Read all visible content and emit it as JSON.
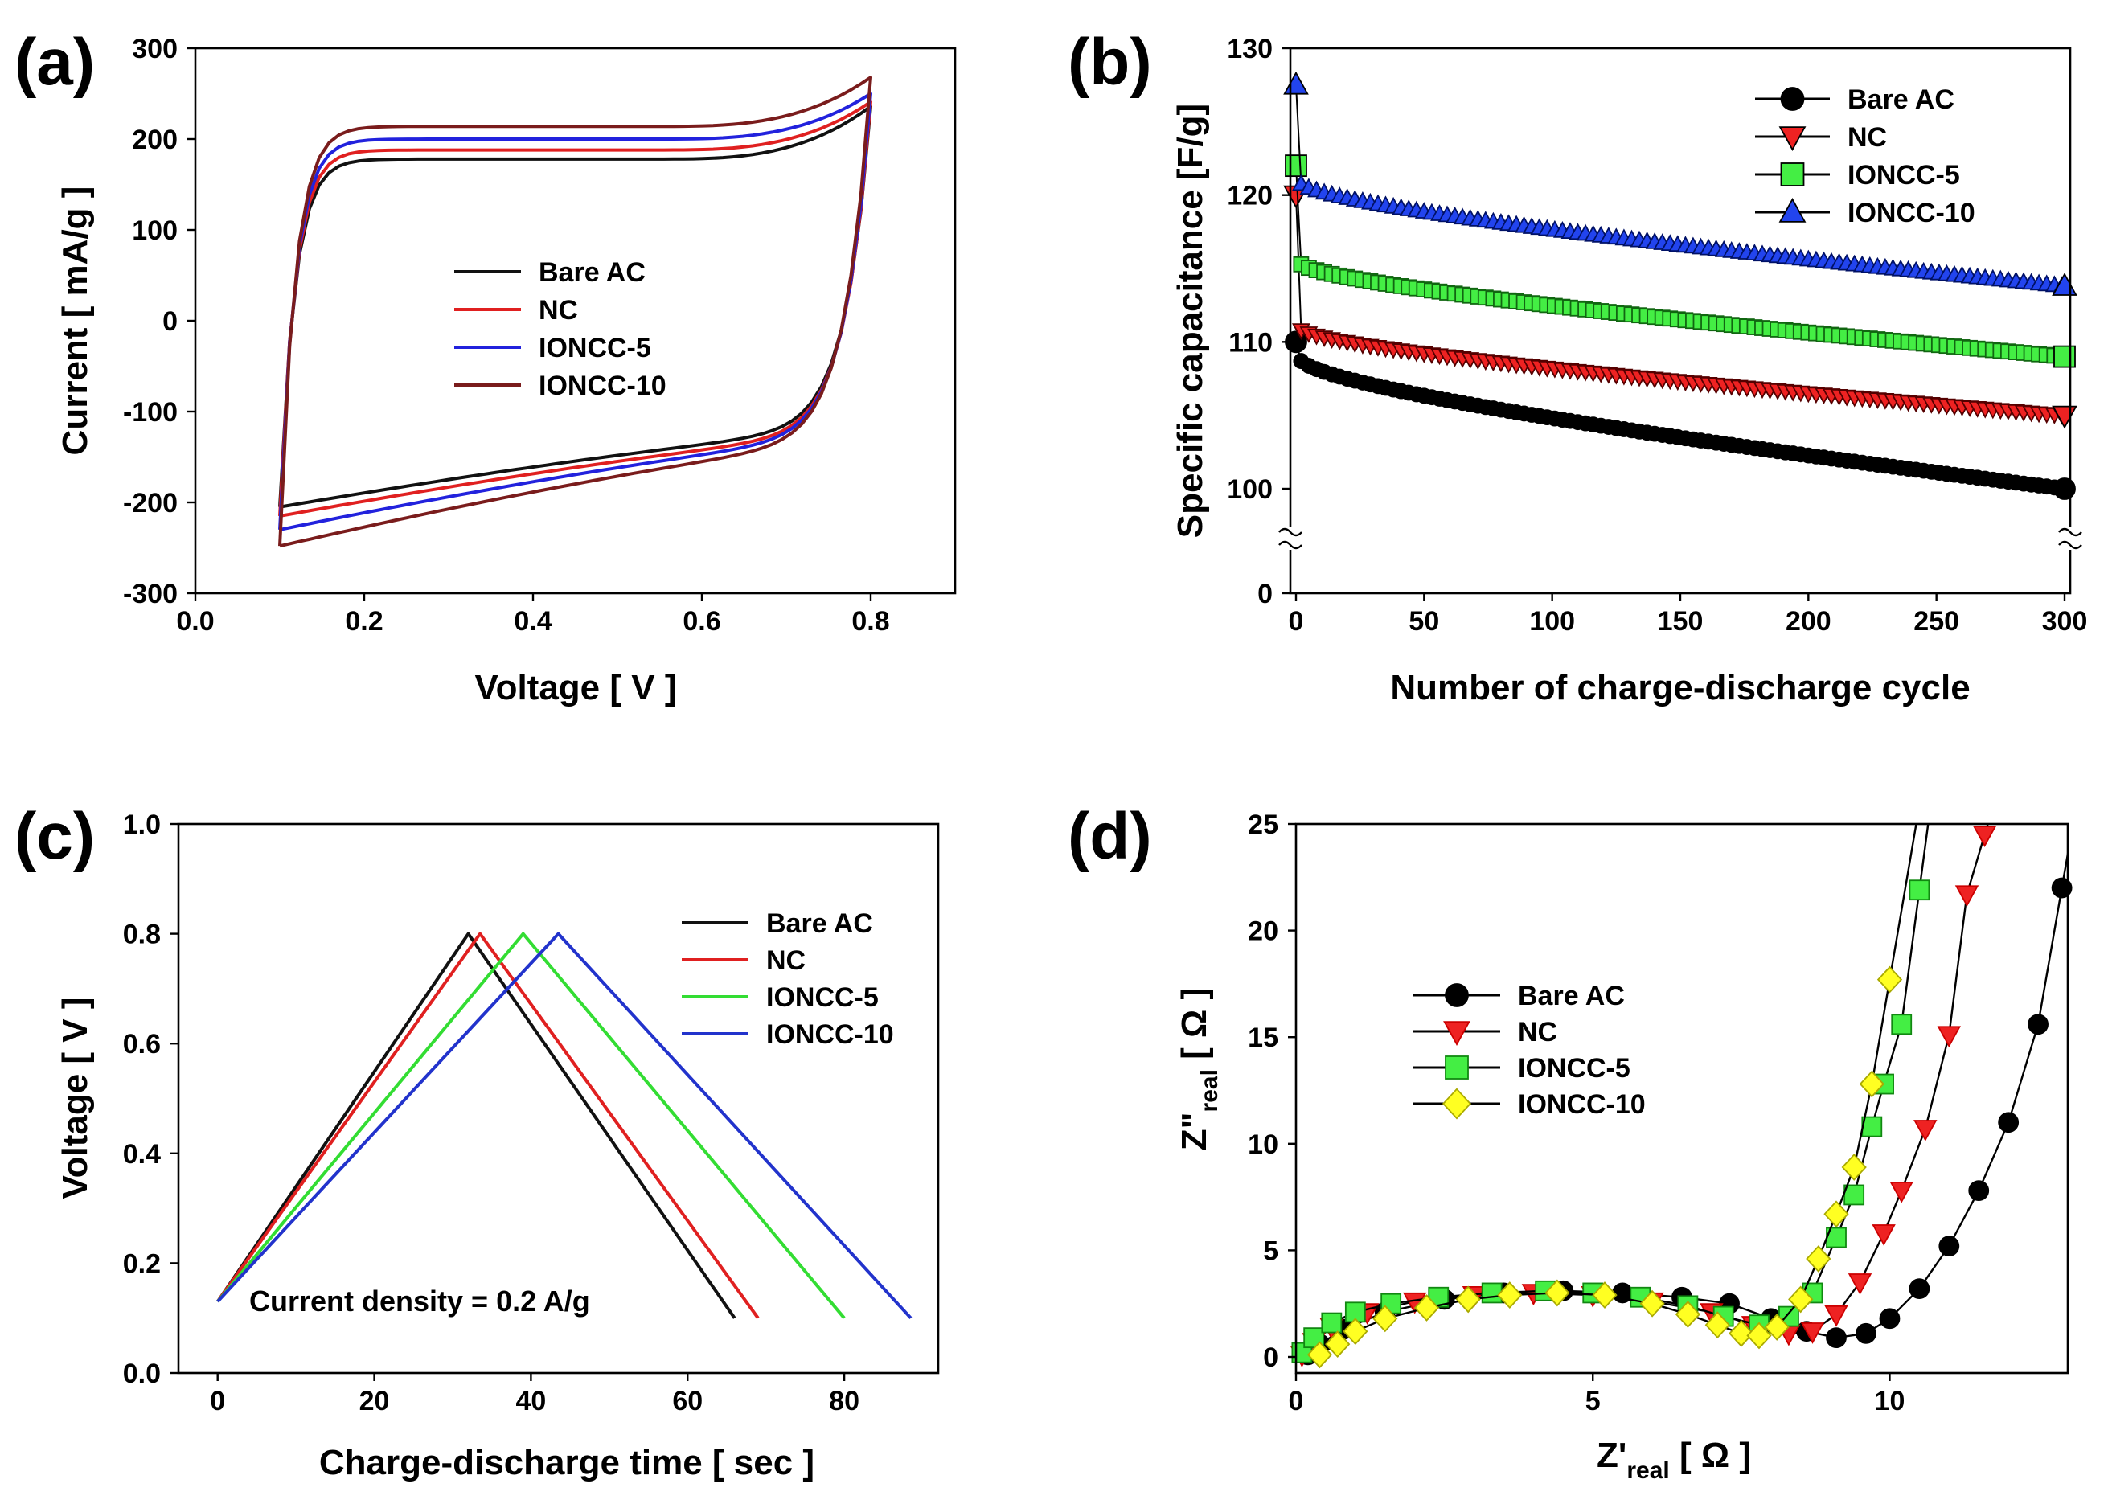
{
  "figure": {
    "panels": [
      "(a)",
      "(b)",
      "(c)",
      "(d)"
    ]
  },
  "chart_data": [
    {
      "id": "a",
      "type": "line",
      "panel_label": "(a)",
      "title": "",
      "xlabel": "Voltage [ V ]",
      "ylabel": "Current [ mA/g ]",
      "xlim": [
        0.0,
        0.9
      ],
      "ylim": [
        -300,
        300
      ],
      "xticks": [
        0.0,
        0.2,
        0.4,
        0.6,
        0.8
      ],
      "xtick_labels": [
        "0.0",
        "0.2",
        "0.4",
        "0.6",
        "0.8"
      ],
      "yticks": [
        -300,
        -200,
        -100,
        0,
        100,
        200,
        300
      ],
      "ytick_labels": [
        "-300",
        "-200",
        "-100",
        "0",
        "100",
        "200",
        "300"
      ],
      "legend_position": "center",
      "series": [
        {
          "name": "Bare AC",
          "color": "#111111",
          "plateau_top": 178,
          "top_end": 236,
          "bottom_start": -205,
          "plateau_bottom": -158,
          "bottom_end": -120
        },
        {
          "name": "NC",
          "color": "#e02020",
          "plateau_top": 188,
          "top_end": 241,
          "bottom_start": -215,
          "plateau_bottom": -165,
          "bottom_end": -125
        },
        {
          "name": "IONCC-5",
          "color": "#2222dd",
          "plateau_top": 200,
          "top_end": 250,
          "bottom_start": -230,
          "plateau_bottom": -172,
          "bottom_end": -128
        },
        {
          "name": "IONCC-10",
          "color": "#7a1c1c",
          "plateau_top": 214,
          "top_end": 268,
          "bottom_start": -248,
          "plateau_bottom": -180,
          "bottom_end": -133
        }
      ]
    },
    {
      "id": "b",
      "type": "scatter",
      "panel_label": "(b)",
      "title": "",
      "xlabel": "Number of charge-discharge cycle",
      "ylabel": "Specific capacitance [F/g]",
      "xlim": [
        0,
        300
      ],
      "ylim": [
        95,
        130
      ],
      "axis_break": "between 0 and 100",
      "xticks": [
        0,
        50,
        100,
        150,
        200,
        250,
        300
      ],
      "xtick_labels": [
        "0",
        "50",
        "100",
        "150",
        "200",
        "250",
        "300"
      ],
      "ytick_labels": [
        "0",
        "100",
        "110",
        "120",
        "130"
      ],
      "legend_position": "top-right",
      "series": [
        {
          "name": "Bare AC",
          "marker": "circle",
          "color": "#000000",
          "first": 110,
          "second": 109,
          "end": 100
        },
        {
          "name": "NC",
          "marker": "triangle-down",
          "color": "#e02020",
          "first": 120,
          "second": 111,
          "end": 105
        },
        {
          "name": "IONCC-5",
          "marker": "square",
          "color": "#33dd33",
          "first": 122,
          "second": 115.5,
          "end": 109
        },
        {
          "name": "IONCC-10",
          "marker": "triangle-up",
          "color": "#2233dd",
          "first": 127.5,
          "second": 121,
          "end": 113.8
        }
      ]
    },
    {
      "id": "c",
      "type": "line",
      "panel_label": "(c)",
      "title": "",
      "xlabel": "Charge-discharge time [ sec ]",
      "ylabel": "Voltage [ V ]",
      "xlim": [
        -5,
        92
      ],
      "ylim": [
        0.0,
        1.0
      ],
      "xticks": [
        0,
        20,
        40,
        60,
        80
      ],
      "xtick_labels": [
        "0",
        "20",
        "40",
        "60",
        "80"
      ],
      "yticks": [
        0.0,
        0.2,
        0.4,
        0.6,
        0.8,
        1.0
      ],
      "ytick_labels": [
        "0.0",
        "0.2",
        "0.4",
        "0.6",
        "0.8",
        "1.0"
      ],
      "annotation": "Current density = 0.2 A/g",
      "legend_position": "top-right",
      "series": [
        {
          "name": "Bare AC",
          "color": "#111111",
          "x": [
            0,
            32,
            66
          ],
          "y": [
            0.13,
            0.8,
            0.1
          ]
        },
        {
          "name": "NC",
          "color": "#e02020",
          "x": [
            0,
            33.5,
            69
          ],
          "y": [
            0.13,
            0.8,
            0.1
          ]
        },
        {
          "name": "IONCC-5",
          "color": "#33dd33",
          "x": [
            0,
            39,
            80
          ],
          "y": [
            0.13,
            0.8,
            0.1
          ]
        },
        {
          "name": "IONCC-10",
          "color": "#2233cc",
          "x": [
            0,
            43.5,
            88.5
          ],
          "y": [
            0.13,
            0.8,
            0.1
          ]
        }
      ]
    },
    {
      "id": "d",
      "type": "scatter",
      "panel_label": "(d)",
      "title": "",
      "xlabel": "Z'real [ Ω ]",
      "ylabel": "Z\"real [ Ω ]",
      "xlabel_main": "Z'",
      "xlabel_sub": "real",
      "xlabel_unit": " [ Ω ]",
      "ylabel_main": "Z\"",
      "ylabel_sub": "real",
      "ylabel_unit": " [ Ω ]",
      "xlim": [
        0,
        13
      ],
      "ylim": [
        0,
        25
      ],
      "xticks": [
        0,
        5,
        10
      ],
      "xtick_labels": [
        "0",
        "5",
        "10"
      ],
      "yticks": [
        0,
        5,
        10,
        15,
        20,
        25
      ],
      "ytick_labels": [
        "0",
        "5",
        "10",
        "15",
        "20",
        "25"
      ],
      "legend_position": "center-left",
      "series": [
        {
          "name": "Bare AC",
          "marker": "circle",
          "color": "#000000",
          "fill": "#000000",
          "x": [
            0.2,
            0.4,
            0.8,
            1.5,
            2.5,
            3.5,
            4.5,
            5.5,
            6.5,
            7.3,
            8.0,
            8.6,
            9.1,
            9.6,
            10.0,
            10.5,
            11.0,
            11.5,
            12.0,
            12.5,
            12.9
          ],
          "y": [
            0.1,
            0.6,
            1.3,
            2.1,
            2.7,
            3.0,
            3.1,
            3.0,
            2.8,
            2.5,
            1.8,
            1.2,
            0.9,
            1.1,
            1.8,
            3.2,
            5.2,
            7.8,
            11.0,
            15.6,
            22.0
          ]
        },
        {
          "name": "NC",
          "marker": "triangle-down",
          "color": "#cc0000",
          "fill": "#ee2222",
          "x": [
            0.1,
            0.3,
            0.6,
            1.2,
            2.0,
            3.0,
            4.0,
            5.0,
            6.0,
            7.0,
            7.7,
            8.3,
            8.7,
            9.1,
            9.5,
            9.9,
            10.2,
            10.6,
            11.0,
            11.3,
            11.6
          ],
          "y": [
            0.1,
            0.7,
            1.4,
            2.1,
            2.6,
            2.9,
            3.0,
            2.9,
            2.6,
            2.1,
            1.5,
            1.1,
            1.2,
            2.0,
            3.5,
            5.8,
            7.8,
            10.7,
            15.1,
            21.7,
            24.5
          ]
        },
        {
          "name": "IONCC-5",
          "marker": "square",
          "color": "#118811",
          "fill": "#44ee44",
          "x": [
            0.1,
            0.3,
            0.6,
            1.0,
            1.6,
            2.4,
            3.3,
            4.2,
            5.0,
            5.8,
            6.6,
            7.2,
            7.8,
            8.3,
            8.7,
            9.1,
            9.4,
            9.7,
            9.9,
            10.2,
            10.5
          ],
          "y": [
            0.2,
            0.9,
            1.6,
            2.1,
            2.5,
            2.8,
            3.0,
            3.1,
            3.0,
            2.8,
            2.4,
            1.9,
            1.5,
            1.9,
            3.0,
            5.6,
            7.6,
            10.8,
            12.8,
            15.6,
            21.9
          ]
        },
        {
          "name": "IONCC-10",
          "marker": "diamond",
          "color": "#aaaa00",
          "fill": "#ffff22",
          "x": [
            0.4,
            0.7,
            1.0,
            1.5,
            2.2,
            2.9,
            3.6,
            4.4,
            5.2,
            6.0,
            6.6,
            7.1,
            7.5,
            7.8,
            8.1,
            8.5,
            8.8,
            9.1,
            9.4,
            9.7,
            10.0
          ],
          "y": [
            0.1,
            0.6,
            1.2,
            1.8,
            2.3,
            2.7,
            2.9,
            3.0,
            2.9,
            2.5,
            2.0,
            1.5,
            1.1,
            1.0,
            1.4,
            2.7,
            4.6,
            6.7,
            8.9,
            12.8,
            17.7
          ]
        }
      ]
    }
  ]
}
